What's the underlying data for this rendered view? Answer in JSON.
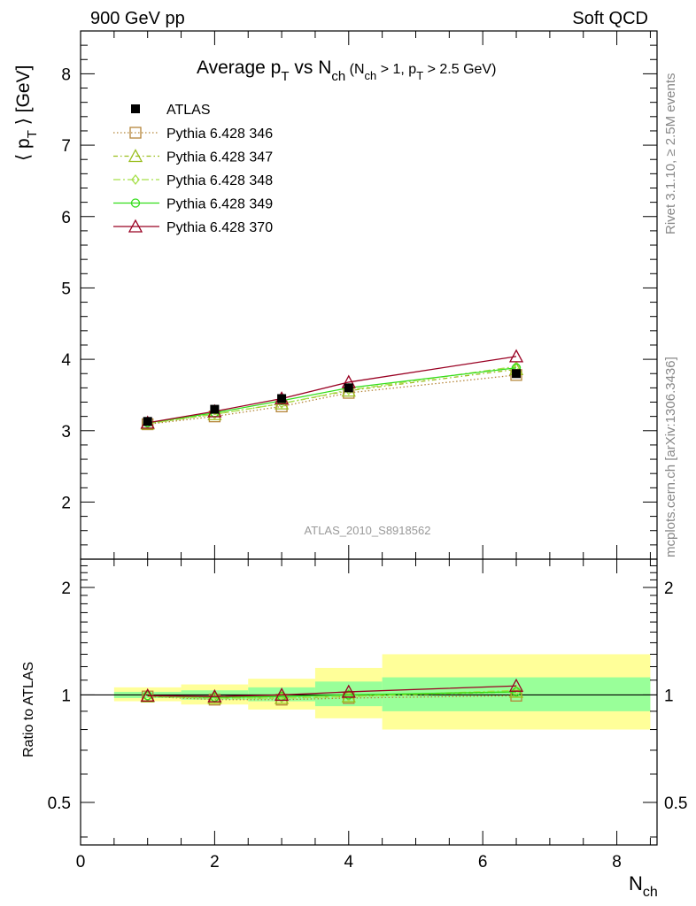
{
  "header": {
    "left": "900 GeV pp",
    "right": "Soft QCD"
  },
  "side_labels": {
    "rivet": "Rivet 3.1.10, ≥ 2.5M events",
    "mcplots": "mcplots.cern.ch [arXiv:1306.3436]"
  },
  "analysis_id": "ATLAS_2010_S8918562",
  "chart_data": [
    {
      "type": "line",
      "title": {
        "main": "Average p",
        "main_sub": "T",
        "vs": " vs N",
        "vs_sub": "ch",
        "cuts": " (N",
        "cuts_sub1": "ch",
        "cuts_mid": " > 1, p",
        "cuts_sub2": "T",
        "cuts_end": " > 2.5 GeV)"
      },
      "ylabel": {
        "open": "⟨ p",
        "sub": "T",
        "close": " ⟩  [GeV]"
      },
      "xlim": [
        0,
        8.6
      ],
      "ylim": [
        1.2,
        8.6
      ],
      "yticks": [
        2,
        3,
        4,
        5,
        6,
        7,
        8
      ],
      "data": {
        "name": "ATLAS",
        "x": [
          1,
          2,
          3,
          4,
          6.5
        ],
        "y": [
          3.13,
          3.3,
          3.45,
          3.6,
          3.8
        ],
        "yerr": [
          0.03,
          0.03,
          0.03,
          0.04,
          0.05
        ]
      },
      "series": [
        {
          "name": "Pythia 6.428 346",
          "color": "#b5863a",
          "marker": "square",
          "dash": "1.5,2.5",
          "x": [
            1,
            2,
            3,
            4,
            6.5
          ],
          "y": [
            3.09,
            3.2,
            3.34,
            3.53,
            3.78
          ]
        },
        {
          "name": "Pythia 6.428 347",
          "color": "#9abe1e",
          "marker": "triangle",
          "dash": "5,3,1.5,3",
          "x": [
            1,
            2,
            3,
            4,
            6.5
          ],
          "y": [
            3.1,
            3.23,
            3.38,
            3.56,
            3.86
          ]
        },
        {
          "name": "Pythia 6.428 348",
          "color": "#a6e04a",
          "marker": "diamond",
          "dash": "8,3,2,3",
          "x": [
            1,
            2,
            3,
            4,
            6.5
          ],
          "y": [
            3.1,
            3.23,
            3.38,
            3.57,
            3.9
          ]
        },
        {
          "name": "Pythia 6.428 349",
          "color": "#33dd1a",
          "marker": "circle",
          "dash": "",
          "x": [
            1,
            2,
            3,
            4,
            6.5
          ],
          "y": [
            3.11,
            3.25,
            3.42,
            3.6,
            3.88
          ]
        },
        {
          "name": "Pythia 6.428 370",
          "color": "#990022",
          "marker": "triangle",
          "dash": "",
          "x": [
            1,
            2,
            3,
            4,
            6.5
          ],
          "y": [
            3.11,
            3.27,
            3.45,
            3.68,
            4.04
          ]
        }
      ]
    },
    {
      "type": "line",
      "ylabel": "Ratio to ATLAS",
      "xlabel": {
        "main": "N",
        "sub": "ch"
      },
      "xlim": [
        0,
        8.6
      ],
      "ylim": [
        0.38,
        2.4
      ],
      "y_scale": "log",
      "yticks": [
        0.5,
        1,
        2
      ],
      "xticks": [
        0,
        2,
        4,
        6,
        8
      ],
      "bands": {
        "x_low": [
          0.5,
          1.5,
          2.5,
          3.5,
          4.5
        ],
        "x_high": [
          1.5,
          2.5,
          3.5,
          4.5,
          8.5
        ],
        "inner": [
          [
            0.98,
            1.02
          ],
          [
            0.97,
            1.03
          ],
          [
            0.96,
            1.05
          ],
          [
            0.93,
            1.09
          ],
          [
            0.9,
            1.12
          ]
        ],
        "outer": [
          [
            0.96,
            1.05
          ],
          [
            0.94,
            1.07
          ],
          [
            0.91,
            1.11
          ],
          [
            0.86,
            1.19
          ],
          [
            0.8,
            1.3
          ]
        ],
        "inner_color": "#99ff99",
        "outer_color": "#ffff99"
      },
      "series": [
        {
          "name": "Pythia 6.428 346",
          "x": [
            1,
            2,
            3,
            4,
            6.5
          ],
          "y": [
            0.99,
            0.97,
            0.97,
            0.98,
            0.995
          ]
        },
        {
          "name": "Pythia 6.428 347",
          "x": [
            1,
            2,
            3,
            4,
            6.5
          ],
          "y": [
            0.99,
            0.98,
            0.98,
            0.99,
            1.02
          ]
        },
        {
          "name": "Pythia 6.428 348",
          "x": [
            1,
            2,
            3,
            4,
            6.5
          ],
          "y": [
            0.99,
            0.98,
            0.98,
            0.99,
            1.03
          ]
        },
        {
          "name": "Pythia 6.428 349",
          "x": [
            1,
            2,
            3,
            4,
            6.5
          ],
          "y": [
            0.995,
            0.985,
            0.99,
            1.0,
            1.02
          ]
        },
        {
          "name": "Pythia 6.428 370",
          "x": [
            1,
            2,
            3,
            4,
            6.5
          ],
          "y": [
            0.995,
            0.99,
            1.0,
            1.02,
            1.06
          ]
        }
      ]
    }
  ]
}
